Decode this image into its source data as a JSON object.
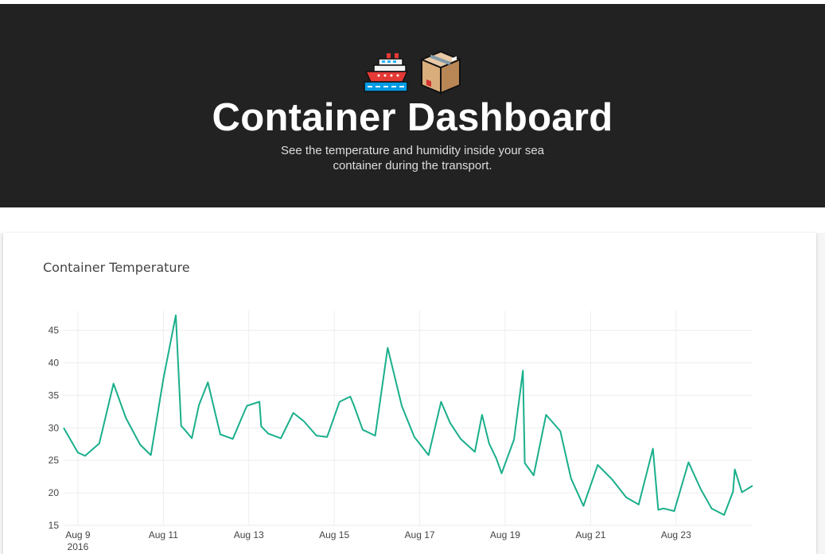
{
  "header": {
    "icons": [
      "ship-icon",
      "package-icon"
    ],
    "title": "Container Dashboard",
    "subtitle": "See the temperature and humidity inside your sea container during the transport."
  },
  "card": {
    "title": "Container Temperature"
  },
  "colors": {
    "header_bg": "#222222",
    "line": "#1aaf8b"
  },
  "chart_data": {
    "type": "line",
    "title": "Container Temperature",
    "xlabel": "",
    "ylabel": "",
    "ylim": [
      15,
      48
    ],
    "xlim": [
      "2016-08-08T16:00",
      "2016-08-24T19:00"
    ],
    "grid": true,
    "y_ticks": [
      "15",
      "20",
      "25",
      "30",
      "35",
      "40",
      "45"
    ],
    "x_ticks": [
      {
        "date": "2016-08-09",
        "label": "Aug 9",
        "sublabel": "2016"
      },
      {
        "date": "2016-08-11",
        "label": "Aug 11"
      },
      {
        "date": "2016-08-13",
        "label": "Aug 13"
      },
      {
        "date": "2016-08-15",
        "label": "Aug 15"
      },
      {
        "date": "2016-08-17",
        "label": "Aug 17"
      },
      {
        "date": "2016-08-19",
        "label": "Aug 19"
      },
      {
        "date": "2016-08-21",
        "label": "Aug 21"
      },
      {
        "date": "2016-08-23",
        "label": "Aug 23"
      }
    ],
    "series": [
      {
        "x": [
          "2016-08-08T16:00",
          "2016-08-09T00:00",
          "2016-08-09T04:00",
          "2016-08-09T12:00",
          "2016-08-09T20:00",
          "2016-08-10T03:00",
          "2016-08-10T11:00",
          "2016-08-10T17:00",
          "2016-08-11T00:00",
          "2016-08-11T07:00",
          "2016-08-11T10:00",
          "2016-08-11T12:00",
          "2016-08-11T16:00",
          "2016-08-11T20:00",
          "2016-08-12T01:00",
          "2016-08-12T08:00",
          "2016-08-12T15:00",
          "2016-08-12T22:00",
          "2016-08-12T23:00",
          "2016-08-13T06:00",
          "2016-08-13T07:00",
          "2016-08-13T11:00",
          "2016-08-13T18:00",
          "2016-08-14T01:00",
          "2016-08-14T07:00",
          "2016-08-14T14:00",
          "2016-08-14T20:00",
          "2016-08-15T03:00",
          "2016-08-15T09:00",
          "2016-08-15T11:00",
          "2016-08-15T16:00",
          "2016-08-15T23:00",
          "2016-08-16T06:00",
          "2016-08-16T14:00",
          "2016-08-16T21:00",
          "2016-08-17T05:00",
          "2016-08-17T12:00",
          "2016-08-17T17:00",
          "2016-08-17T23:00",
          "2016-08-18T07:00",
          "2016-08-18T11:00",
          "2016-08-18T15:00",
          "2016-08-18T19:00",
          "2016-08-18T22:00",
          "2016-08-19T05:00",
          "2016-08-19T10:00",
          "2016-08-19T11:00",
          "2016-08-19T16:00",
          "2016-08-19T23:00",
          "2016-08-20T07:00",
          "2016-08-20T13:00",
          "2016-08-20T20:00",
          "2016-08-21T04:00",
          "2016-08-21T12:00",
          "2016-08-21T20:00",
          "2016-08-22T03:00",
          "2016-08-22T11:00",
          "2016-08-22T14:00",
          "2016-08-22T17:00",
          "2016-08-22T23:00",
          "2016-08-23T07:00",
          "2016-08-23T14:00",
          "2016-08-23T20:00",
          "2016-08-24T03:00",
          "2016-08-24T08:00",
          "2016-08-24T09:00",
          "2016-08-24T13:00",
          "2016-08-24T19:00"
        ],
        "y": [
          30.0,
          26.2,
          25.7,
          27.6,
          36.8,
          31.5,
          27.4,
          25.8,
          37.5,
          47.3,
          30.3,
          29.7,
          28.4,
          33.5,
          37.0,
          29.0,
          28.3,
          32.8,
          33.4,
          34.0,
          30.2,
          29.1,
          28.4,
          32.3,
          31.0,
          28.8,
          28.6,
          34.0,
          34.8,
          33.5,
          29.7,
          28.8,
          42.3,
          33.3,
          28.6,
          25.8,
          34.0,
          30.8,
          28.3,
          26.3,
          32.0,
          27.6,
          25.3,
          23.0,
          28.2,
          38.8,
          24.6,
          22.7,
          32.0,
          29.5,
          22.2,
          18.0,
          24.3,
          22.1,
          19.3,
          18.2,
          26.8,
          17.4,
          17.6,
          17.2,
          24.7,
          20.5,
          17.6,
          16.6,
          20.2,
          23.6,
          20.1,
          21.1
        ]
      }
    ]
  }
}
